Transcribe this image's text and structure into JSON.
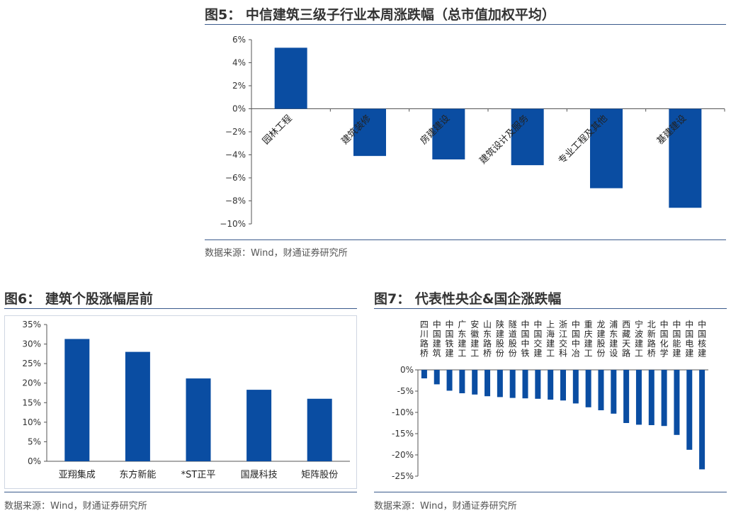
{
  "figures": [
    {
      "title": "图5： 中信建筑三级子行业本周涨跌幅（总市值加权平均）",
      "source": "数据来源：Wind，财通证券研究所"
    },
    {
      "title": "图6： 建筑个股涨幅居前",
      "source": "数据来源：Wind，财通证券研究所"
    },
    {
      "title": "图7： 代表性央企&国企涨跌幅",
      "source": "数据来源：Wind，财通证券研究所"
    }
  ],
  "colors": {
    "bar": "#0a4da2",
    "axis": "#555555",
    "rule": "#3a5a8c"
  },
  "chart_data": [
    {
      "type": "bar",
      "categories": [
        "园林工程",
        "建筑装修",
        "房建建设",
        "建筑设计及服务",
        "专业工程及其他",
        "基建建设"
      ],
      "values": [
        5.3,
        -4.1,
        -4.4,
        -4.9,
        -6.9,
        -8.6
      ],
      "yticks": [
        "6%",
        "4%",
        "2%",
        "0%",
        "−2%",
        "−4%",
        "−6%",
        "−8%",
        "−10%"
      ],
      "ylim": [
        -10,
        6
      ],
      "grid": false
    },
    {
      "type": "bar",
      "categories": [
        "亚翔集成",
        "东方新能",
        "*ST正平",
        "国晟科技",
        "矩阵股份"
      ],
      "values": [
        31.3,
        28.0,
        21.2,
        18.3,
        16.0
      ],
      "yticks": [
        "35%",
        "30%",
        "25%",
        "20%",
        "15%",
        "10%",
        "5%",
        "0%"
      ],
      "ylim": [
        0,
        35
      ],
      "grid": false
    },
    {
      "type": "bar",
      "categories": [
        "四川路桥",
        "中国建筑",
        "中国铁建",
        "广东建工",
        "安徽建工",
        "山东路桥",
        "陕建股份",
        "隧道股份",
        "中国中铁",
        "中国交建",
        "上海建工",
        "浙江交科",
        "中国中冶",
        "重庆建工",
        "龙建股份",
        "浦东建设",
        "西藏天路",
        "宁波建工",
        "北新路桥",
        "中国化学",
        "中国能建",
        "中国电建",
        "中国核建"
      ],
      "values": [
        -2.0,
        -3.4,
        -4.9,
        -5.5,
        -5.8,
        -6.2,
        -6.4,
        -6.6,
        -6.7,
        -6.8,
        -7.0,
        -7.2,
        -7.9,
        -8.8,
        -9.5,
        -10.3,
        -12.5,
        -12.9,
        -13.0,
        -13.2,
        -15.3,
        -18.8,
        -23.4
      ],
      "yticks": [
        "0%",
        "-5%",
        "-10%",
        "-15%",
        "-20%",
        "-25%"
      ],
      "ylim": [
        -25,
        0
      ],
      "grid": false
    }
  ]
}
